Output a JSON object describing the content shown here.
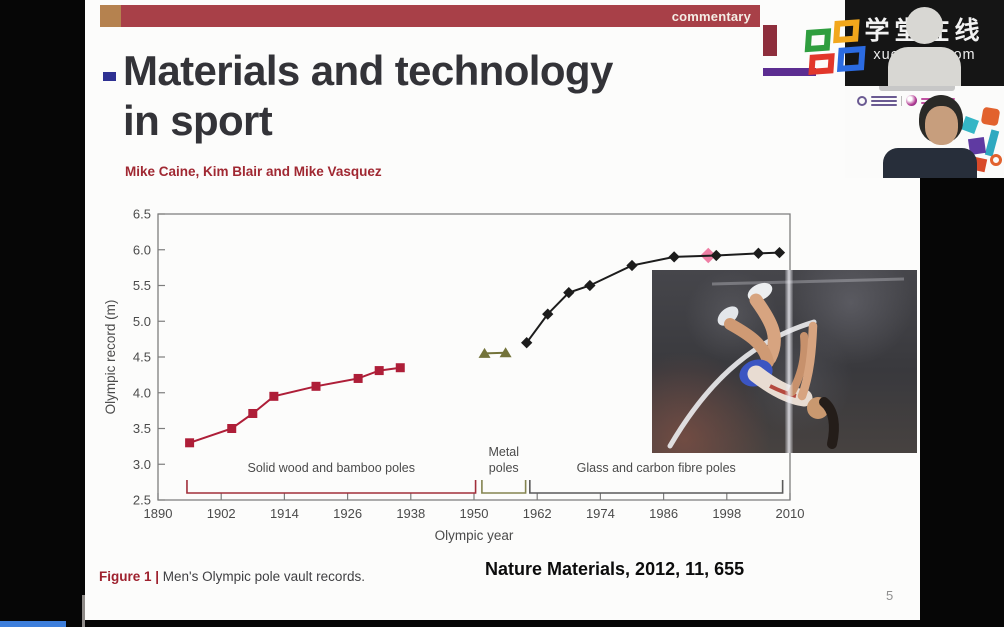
{
  "top_bar": {
    "label": "commentary"
  },
  "slide": {
    "title_line1": "Materials and technology",
    "title_line2": "in sport",
    "authors": "Mike Caine, Kim Blair and Mike Vasquez",
    "caption_prefix": "Figure 1 |",
    "caption_text": " Men's Olympic pole vault records.",
    "reference": "Nature Materials, 2012, 11, 655",
    "page_number": "5"
  },
  "chart_data": {
    "type": "line",
    "title": "",
    "xlabel": "Olympic year",
    "ylabel": "Olympic record (m)",
    "xlim": [
      1890,
      2010
    ],
    "ylim": [
      2.5,
      6.5
    ],
    "x_ticks": [
      1890,
      1902,
      1914,
      1926,
      1938,
      1950,
      1962,
      1974,
      1986,
      1998,
      2010
    ],
    "y_ticks": [
      2.5,
      3.0,
      3.5,
      4.0,
      4.5,
      5.0,
      5.5,
      6.0,
      6.5
    ],
    "grid": false,
    "legend_position": "none",
    "series": [
      {
        "name": "Solid wood and bamboo poles",
        "marker": "square",
        "color": "#ae1e38",
        "points": [
          [
            1896,
            3.3
          ],
          [
            1904,
            3.5
          ],
          [
            1908,
            3.71
          ],
          [
            1912,
            3.95
          ],
          [
            1920,
            4.09
          ],
          [
            1928,
            4.2
          ],
          [
            1932,
            4.31
          ],
          [
            1936,
            4.35
          ]
        ]
      },
      {
        "name": "Metal poles",
        "marker": "triangle",
        "color": "#73733a",
        "points": [
          [
            1952,
            4.55
          ],
          [
            1956,
            4.56
          ]
        ]
      },
      {
        "name": "Glass and carbon fibre poles",
        "marker": "diamond",
        "color": "#1c1c1c",
        "points": [
          [
            1960,
            4.7
          ],
          [
            1964,
            5.1
          ],
          [
            1968,
            5.4
          ],
          [
            1972,
            5.5
          ],
          [
            1980,
            5.78
          ],
          [
            1988,
            5.9
          ],
          [
            1996,
            5.92
          ],
          [
            2004,
            5.95
          ],
          [
            2008,
            5.96
          ]
        ]
      }
    ],
    "highlight_point": {
      "x": 1996,
      "y": 5.92,
      "color": "#ef7fa5"
    },
    "groups": [
      {
        "label": "Solid wood and bamboo poles",
        "from": 1895.5,
        "to": 1950.3,
        "color": "#a12e3a",
        "two_line": false
      },
      {
        "label": "Metal poles",
        "from": 1951.5,
        "to": 1959.8,
        "color": "#83834f",
        "two_line": true
      },
      {
        "label": "Glass and carbon fibre poles",
        "from": 1960.6,
        "to": 2008.6,
        "color": "#5a5a5a",
        "two_line": false
      }
    ]
  },
  "webcam": {
    "watermark_line1": "学堂在线",
    "watermark_line2": "xuetangx.com"
  },
  "colors": {
    "commentary_bar": "#a84048",
    "tan_square": "#b5824f",
    "accent_blue_dash": "#2e3192",
    "authors_red": "#a02832",
    "purple_bar": "#5c2d91",
    "bottom_blue_bar": "#3d7edb"
  }
}
